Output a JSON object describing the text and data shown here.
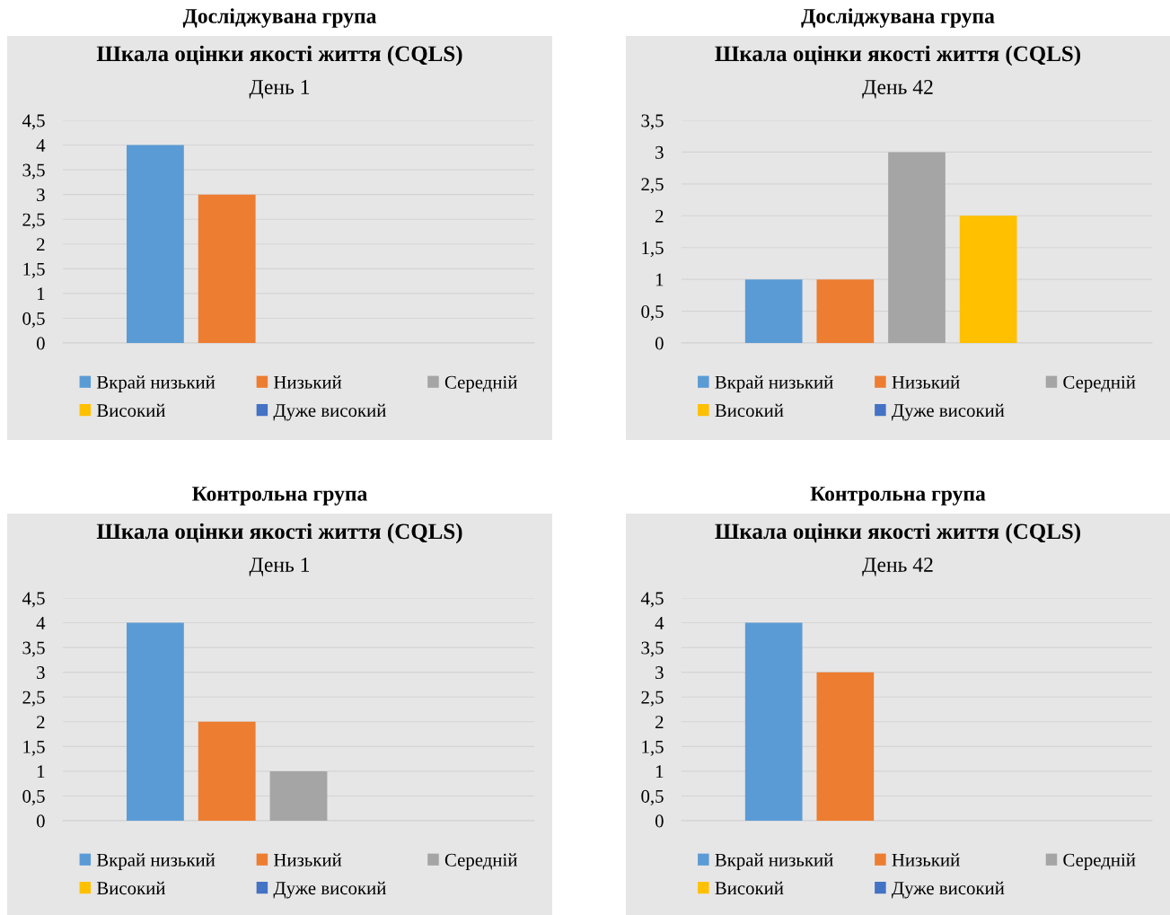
{
  "chart_data": [
    {
      "type": "bar",
      "title": "Досліджувана група",
      "subtitle": "Шкала оцінки якості життя (CQLS)\nДень 1",
      "categories": [
        null
      ],
      "series": [
        {
          "name": "Вкрай низький",
          "color": "#5b9bd5",
          "values": [
            4
          ]
        },
        {
          "name": "Низький",
          "color": "#ed7d31",
          "values": [
            3
          ]
        },
        {
          "name": "Середній",
          "color": "#a5a5a5",
          "values": [
            0
          ]
        },
        {
          "name": "Високий",
          "color": "#ffc000",
          "values": [
            0
          ]
        },
        {
          "name": "Дуже високий",
          "color": "#4472c4",
          "values": [
            0
          ]
        }
      ],
      "ylim": [
        0,
        4.5
      ],
      "yticks": [
        0,
        {
          "value": 0.5,
          "label": "0,5"
        },
        1,
        {
          "value": 1.5,
          "label": "1,5"
        },
        2,
        {
          "value": 2.5,
          "label": "2,5"
        },
        3,
        {
          "value": 3.5,
          "label": "3,5"
        },
        4,
        {
          "value": 4.5,
          "label": "4,5"
        }
      ],
      "grid": "y",
      "legend": "bottom"
    },
    {
      "type": "bar",
      "title": "Досліджувана група",
      "subtitle": "Шкала оцінки якості життя (CQLS)\nДень 42",
      "categories": [
        null
      ],
      "series": [
        {
          "name": "Вкрай низький",
          "color": "#5b9bd5",
          "values": [
            1
          ]
        },
        {
          "name": "Низький",
          "color": "#ed7d31",
          "values": [
            1
          ]
        },
        {
          "name": "Середній",
          "color": "#a5a5a5",
          "values": [
            3
          ]
        },
        {
          "name": "Високий",
          "color": "#ffc000",
          "values": [
            2
          ]
        },
        {
          "name": "Дуже високий",
          "color": "#4472c4",
          "values": [
            0
          ]
        }
      ],
      "ylim": [
        0,
        3.5
      ],
      "yticks": [
        0,
        {
          "value": 0.5,
          "label": "0,5"
        },
        1,
        {
          "value": 1.5,
          "label": "1,5"
        },
        2,
        {
          "value": 2.5,
          "label": "2,5"
        },
        3,
        {
          "value": 3.5,
          "label": "3,5"
        }
      ],
      "grid": "y",
      "legend": "bottom"
    },
    {
      "type": "bar",
      "title": "Контрольна група",
      "subtitle": "Шкала оцінки якості життя (CQLS)\nДень 1",
      "categories": [
        null
      ],
      "series": [
        {
          "name": "Вкрай низький",
          "color": "#5b9bd5",
          "values": [
            4
          ]
        },
        {
          "name": "Низький",
          "color": "#ed7d31",
          "values": [
            2
          ]
        },
        {
          "name": "Середній",
          "color": "#a5a5a5",
          "values": [
            1
          ]
        },
        {
          "name": "Високий",
          "color": "#ffc000",
          "values": [
            0
          ]
        },
        {
          "name": "Дуже високий",
          "color": "#4472c4",
          "values": [
            0
          ]
        }
      ],
      "ylim": [
        0,
        4.5
      ],
      "yticks": [
        0,
        {
          "value": 0.5,
          "label": "0,5"
        },
        1,
        {
          "value": 1.5,
          "label": "1,5"
        },
        2,
        {
          "value": 2.5,
          "label": "2,5"
        },
        3,
        {
          "value": 3.5,
          "label": "3,5"
        },
        4,
        {
          "value": 4.5,
          "label": "4,5"
        }
      ],
      "grid": "y",
      "legend": "bottom"
    },
    {
      "type": "bar",
      "title": "Контрольна група",
      "subtitle": "Шкала оцінки якості життя (CQLS)\nДень 42",
      "categories": [
        null
      ],
      "series": [
        {
          "name": "Вкрай низький",
          "color": "#5b9bd5",
          "values": [
            4
          ]
        },
        {
          "name": "Низький",
          "color": "#ed7d31",
          "values": [
            3
          ]
        },
        {
          "name": "Середній",
          "color": "#a5a5a5",
          "values": [
            0
          ]
        },
        {
          "name": "Високий",
          "color": "#ffc000",
          "values": [
            0
          ]
        },
        {
          "name": "Дуже високий",
          "color": "#4472c4",
          "values": [
            0
          ]
        }
      ],
      "ylim": [
        0,
        4.5
      ],
      "yticks": [
        0,
        {
          "value": 0.5,
          "label": "0,5"
        },
        1,
        {
          "value": 1.5,
          "label": "1,5"
        },
        2,
        {
          "value": 2.5,
          "label": "2,5"
        },
        3,
        {
          "value": 3.5,
          "label": "3,5"
        },
        4,
        {
          "value": 4.5,
          "label": "4,5"
        }
      ],
      "grid": "y",
      "legend": "bottom"
    }
  ]
}
